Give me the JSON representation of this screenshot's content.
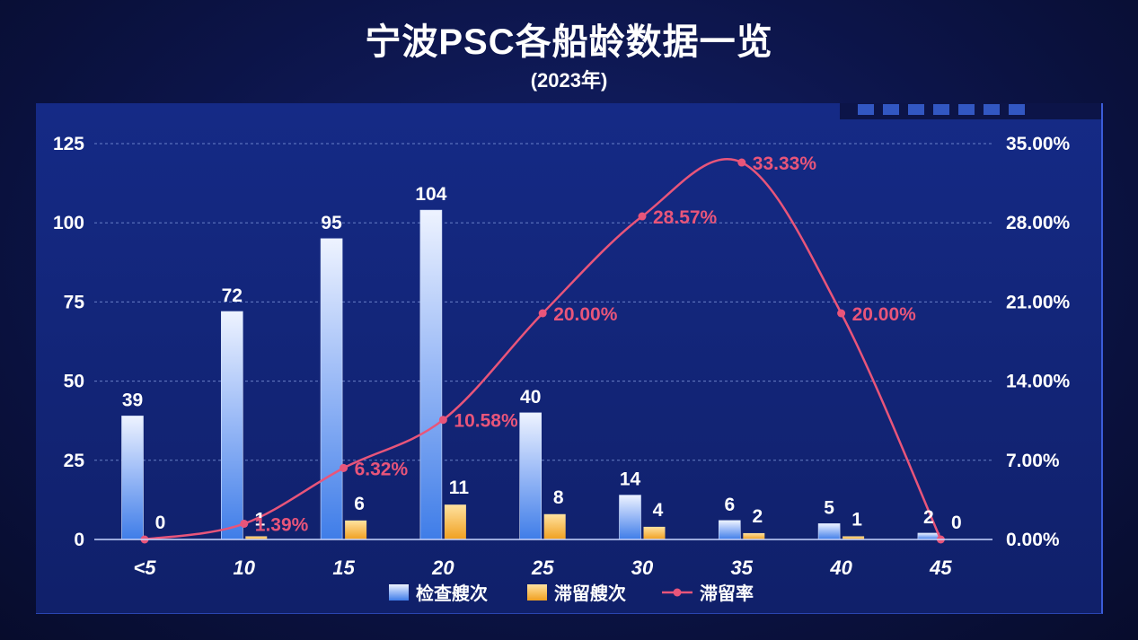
{
  "chart_data": {
    "type": "bar",
    "title": "宁波PSC各船龄数据一览",
    "subtitle": "(2023年)",
    "categories": [
      "<5",
      "10",
      "15",
      "20",
      "25",
      "30",
      "35",
      "40",
      "45"
    ],
    "series": [
      {
        "name": "检查艘次",
        "type": "bar",
        "axis": "left",
        "values": [
          39,
          72,
          95,
          104,
          40,
          14,
          6,
          5,
          2
        ],
        "color": "#5b8ff0"
      },
      {
        "name": "滞留艘次",
        "type": "bar",
        "axis": "left",
        "values": [
          0,
          1,
          6,
          11,
          8,
          4,
          2,
          1,
          0
        ],
        "color": "#f5b23a"
      },
      {
        "name": "滞留率",
        "type": "line",
        "axis": "right",
        "values": [
          0.0,
          1.39,
          6.32,
          10.58,
          20.0,
          28.57,
          33.33,
          20.0,
          0.0
        ],
        "labels": [
          "",
          "1.39%",
          "6.32%",
          "10.58%",
          "20.00%",
          "28.57%",
          "33.33%",
          "20.00%",
          ""
        ],
        "color": "#e8557a"
      }
    ],
    "y_left": {
      "ylim": [
        0,
        125
      ],
      "ticks": [
        "0",
        "25",
        "50",
        "75",
        "100",
        "125"
      ]
    },
    "y_right": {
      "ylim": [
        0,
        35
      ],
      "ticks": [
        "0.00%",
        "7.00%",
        "14.00%",
        "21.00%",
        "28.00%",
        "35.00%"
      ]
    },
    "grid": true,
    "legend_position": "bottom"
  }
}
